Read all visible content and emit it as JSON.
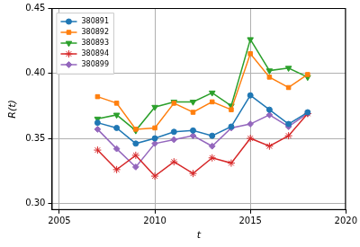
{
  "chart_data": {
    "type": "line",
    "x_label": "t",
    "y_label": "R(t)",
    "x": [
      2007,
      2008,
      2009,
      2010,
      2011,
      2012,
      2013,
      2014,
      2015,
      2016,
      2017,
      2018
    ],
    "series": [
      {
        "name": "380891",
        "color": "#1f77b4",
        "marker": "circle",
        "values": [
          0.362,
          0.358,
          0.346,
          0.35,
          0.355,
          0.356,
          0.352,
          0.359,
          0.383,
          0.372,
          0.361,
          0.37
        ]
      },
      {
        "name": "380892",
        "color": "#ff7f0e",
        "marker": "square",
        "values": [
          0.382,
          0.377,
          0.357,
          0.358,
          0.377,
          0.37,
          0.378,
          0.372,
          0.415,
          0.397,
          0.389,
          0.399
        ]
      },
      {
        "name": "380893",
        "color": "#2ca02c",
        "marker": "triangle_down",
        "values": [
          0.365,
          0.368,
          0.356,
          0.374,
          0.378,
          0.378,
          0.385,
          0.375,
          0.426,
          0.402,
          0.404,
          0.397
        ]
      },
      {
        "name": "380894",
        "color": "#d62728",
        "marker": "star",
        "values": [
          0.341,
          0.326,
          0.337,
          0.321,
          0.332,
          0.323,
          0.335,
          0.331,
          0.35,
          0.344,
          0.352,
          0.369
        ]
      },
      {
        "name": "380899",
        "color": "#9467bd",
        "marker": "diamond",
        "values": [
          0.357,
          0.342,
          0.328,
          0.346,
          0.349,
          0.352,
          0.344,
          0.358,
          0.361,
          0.368,
          0.359,
          0.369
        ]
      }
    ],
    "xlim": [
      2004.6,
      2020
    ],
    "xticks": [
      2005,
      2010,
      2015,
      2020
    ],
    "ylim": [
      0.295,
      0.45
    ],
    "yticks": [
      {
        "value": 0.3,
        "label": "0.30"
      },
      0.35,
      {
        "value": 0.4,
        "label": "0.40"
      },
      0.45
    ],
    "grid": true,
    "legend": "upper left"
  }
}
